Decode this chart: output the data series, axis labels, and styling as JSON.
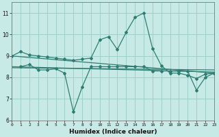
{
  "xlabel": "Humidex (Indice chaleur)",
  "background_color": "#c8eae6",
  "grid_color": "#9ecfca",
  "line_color": "#2e7d72",
  "x_min": 0,
  "x_max": 23,
  "y_min": 6,
  "y_max": 11.5,
  "line1_x": [
    0,
    1,
    2,
    3,
    4,
    5,
    6,
    7,
    8,
    9,
    10,
    11,
    12,
    13,
    14,
    15,
    16,
    17,
    18,
    19,
    20,
    21,
    22,
    23
  ],
  "line1_y": [
    9.0,
    9.2,
    9.05,
    9.0,
    8.95,
    8.9,
    8.85,
    8.8,
    8.85,
    8.9,
    9.75,
    9.9,
    9.3,
    10.1,
    10.8,
    11.0,
    9.35,
    8.55,
    8.2,
    8.2,
    8.1,
    7.95,
    8.15,
    8.2
  ],
  "line2_x": [
    1,
    2,
    3,
    4,
    5,
    6,
    7,
    8,
    9,
    10,
    11,
    12,
    13,
    14,
    15,
    16,
    17,
    18,
    19,
    20,
    21,
    22,
    23
  ],
  "line2_y": [
    8.5,
    8.6,
    8.35,
    8.35,
    8.4,
    8.2,
    6.4,
    7.55,
    8.5,
    8.5,
    8.5,
    8.5,
    8.5,
    8.5,
    8.5,
    8.3,
    8.3,
    8.3,
    8.3,
    8.3,
    7.4,
    8.0,
    8.2
  ],
  "line3_x": [
    0,
    23
  ],
  "line3_y": [
    9.0,
    8.2
  ],
  "line4_x": [
    0,
    23
  ],
  "line4_y": [
    8.5,
    8.25
  ],
  "line5_x": [
    0,
    23
  ],
  "line5_y": [
    8.45,
    8.35
  ],
  "yticks": [
    6,
    7,
    8,
    9,
    10,
    11
  ],
  "xticks": [
    0,
    1,
    2,
    3,
    4,
    5,
    6,
    7,
    8,
    9,
    10,
    11,
    12,
    13,
    14,
    15,
    16,
    17,
    18,
    19,
    20,
    21,
    22,
    23
  ]
}
